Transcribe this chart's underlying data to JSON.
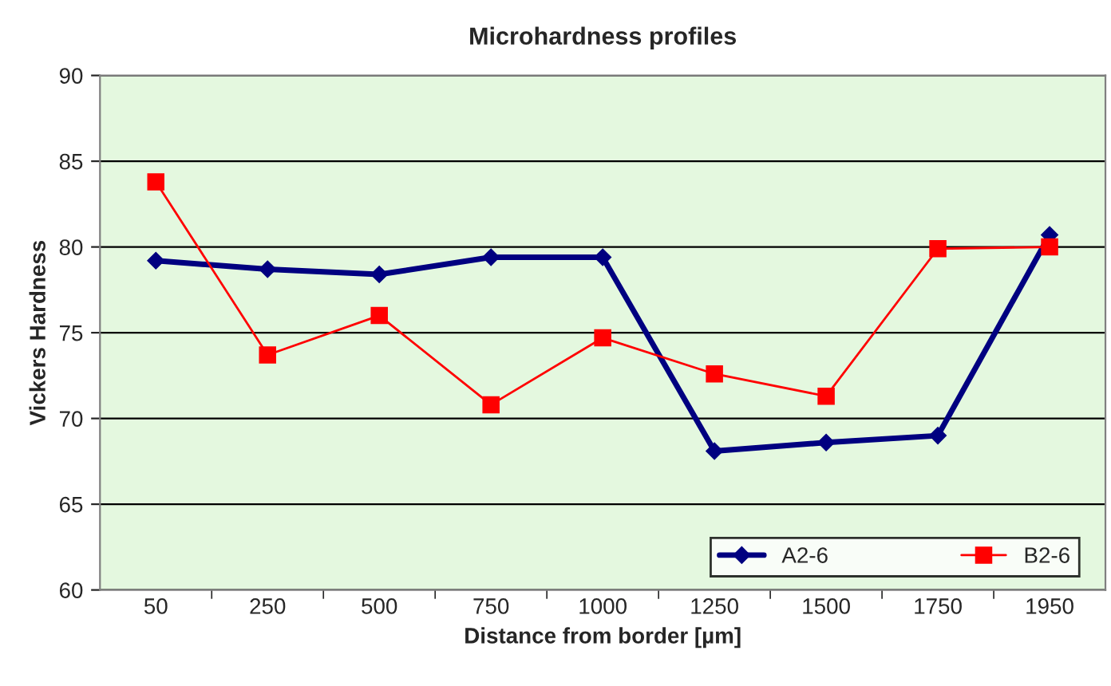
{
  "chart_data": {
    "type": "line",
    "title": "Microhardness profiles",
    "xlabel": "Distance from border [µm]",
    "ylabel": "Vickers Hardness",
    "categories": [
      "50",
      "250",
      "500",
      "750",
      "1000",
      "1250",
      "1500",
      "1750",
      "1950"
    ],
    "series": [
      {
        "name": "A2-6",
        "color": "#000080",
        "marker": "diamond",
        "values": [
          79.2,
          78.7,
          78.4,
          79.4,
          79.4,
          68.1,
          68.6,
          69.0,
          80.7
        ]
      },
      {
        "name": "B2-6",
        "color": "#ff0000",
        "marker": "square",
        "values": [
          83.8,
          73.7,
          76.0,
          70.8,
          74.7,
          72.6,
          71.3,
          79.9,
          80.0
        ]
      }
    ],
    "ylim": [
      60,
      90
    ],
    "yticks": [
      60,
      65,
      70,
      75,
      80,
      85,
      90
    ],
    "grid": "y",
    "legend": "bottom right",
    "line_style": "solid"
  }
}
